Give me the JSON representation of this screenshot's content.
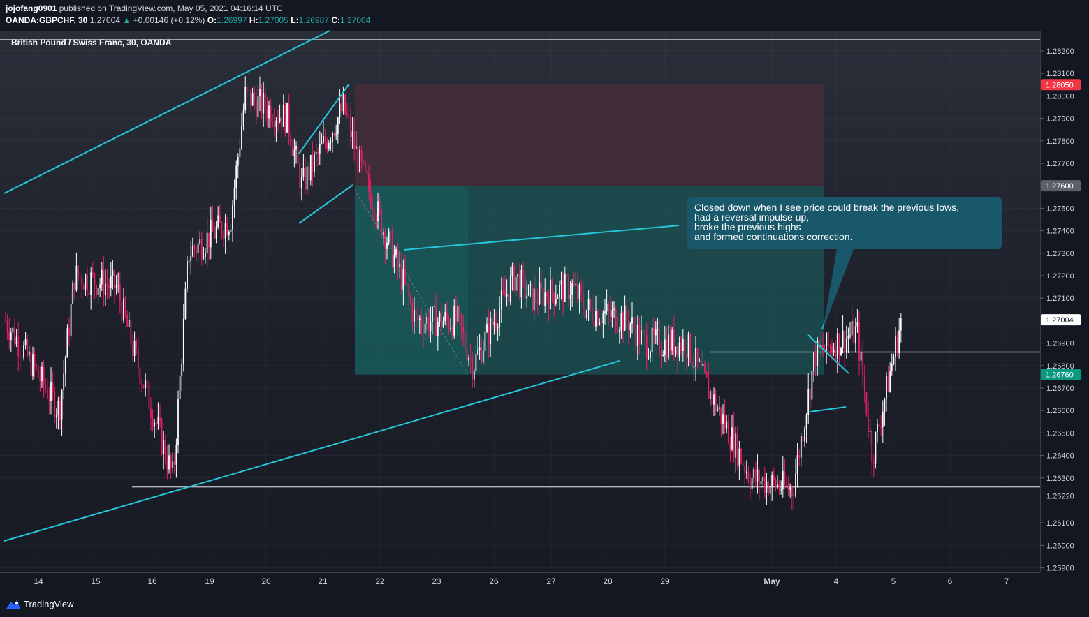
{
  "header": {
    "author": "jojofang0901",
    "published": "published on TradingView.com, May 05, 2021 04:16:14 UTC",
    "symbol": "OANDA:GBPCHF, 30",
    "last": "1.27004",
    "arrow": "▲",
    "change": "+0.00146 (+0.12%)",
    "o_label": "O:",
    "o_value": "1.26997",
    "h_label": "H:",
    "h_value": "1.27005",
    "l_label": "L:",
    "l_value": "1.26987",
    "c_label": "C:",
    "c_value": "1.27004"
  },
  "chart_title": "British Pound / Swiss Franc, 30, OANDA",
  "annotation": {
    "lines": [
      "Closed down when I see price could break the previous lows,",
      "had a reversal impulse up,",
      "broke the previous highs",
      "and formed continuations correction."
    ]
  },
  "footer": {
    "brand": "TradingView"
  },
  "colors": {
    "background": "#131722",
    "up_candle": "#ffffff",
    "down_candle": "#e91e63",
    "trendline": "#26c6da",
    "stop_zone": "#4a2f3a",
    "target_zone": "#1a5c5c",
    "current_price_badge": "#ffffff",
    "stop_badge": "#f23645",
    "entry_badge": "#5d606b",
    "target_badge": "#089981"
  },
  "chart_data": {
    "type": "candlestick",
    "symbol": "GBPCHF",
    "timeframe": "30",
    "ylim": [
      1.2588,
      1.2829
    ],
    "y_ticks": [
      "1.25900",
      "1.26000",
      "1.26100",
      "1.26220",
      "1.26300",
      "1.26400",
      "1.26500",
      "1.26600",
      "1.26700",
      "1.26800",
      "1.26900",
      "1.27100",
      "1.27200",
      "1.27300",
      "1.27400",
      "1.27500",
      "1.27700",
      "1.27800",
      "1.27900",
      "1.28000",
      "1.28100",
      "1.28200"
    ],
    "x_ticks": [
      "14",
      "15",
      "16",
      "19",
      "20",
      "21",
      "22",
      "23",
      "26",
      "27",
      "28",
      "29",
      "May",
      "4",
      "5",
      "6",
      "7"
    ],
    "price_badges": [
      {
        "label": "1.28050",
        "price": 1.2805,
        "role": "stop"
      },
      {
        "label": "1.27600",
        "price": 1.276,
        "role": "entry"
      },
      {
        "label": "1.27004",
        "price": 1.27004,
        "role": "current"
      },
      {
        "label": "1.26760",
        "price": 1.2676,
        "role": "target"
      }
    ],
    "horizontal_levels": [
      1.2825,
      1.2686,
      1.2626
    ],
    "path": [
      {
        "date": "14",
        "price": 1.27
      },
      {
        "date": "14",
        "price": 1.266
      },
      {
        "date": "15",
        "price": 1.272
      },
      {
        "date": "15",
        "price": 1.2715
      },
      {
        "date": "16",
        "price": 1.269
      },
      {
        "date": "16",
        "price": 1.263
      },
      {
        "date": "19",
        "price": 1.273
      },
      {
        "date": "19",
        "price": 1.2745
      },
      {
        "date": "20",
        "price": 1.28
      },
      {
        "date": "20",
        "price": 1.279
      },
      {
        "date": "21",
        "price": 1.276
      },
      {
        "date": "21",
        "price": 1.2795
      },
      {
        "date": "22",
        "price": 1.277
      },
      {
        "date": "22",
        "price": 1.272
      },
      {
        "date": "23",
        "price": 1.27
      },
      {
        "date": "23",
        "price": 1.27
      },
      {
        "date": "26",
        "price": 1.268
      },
      {
        "date": "26",
        "price": 1.272
      },
      {
        "date": "27",
        "price": 1.271
      },
      {
        "date": "27",
        "price": 1.2715
      },
      {
        "date": "28",
        "price": 1.2705
      },
      {
        "date": "28",
        "price": 1.27
      },
      {
        "date": "29",
        "price": 1.269
      },
      {
        "date": "29",
        "price": 1.269
      },
      {
        "date": "May",
        "price": 1.263
      },
      {
        "date": "May",
        "price": 1.2625
      },
      {
        "date": "4",
        "price": 1.2685
      },
      {
        "date": "4",
        "price": 1.2695
      },
      {
        "date": "5",
        "price": 1.264
      },
      {
        "date": "5",
        "price": 1.27
      }
    ]
  }
}
